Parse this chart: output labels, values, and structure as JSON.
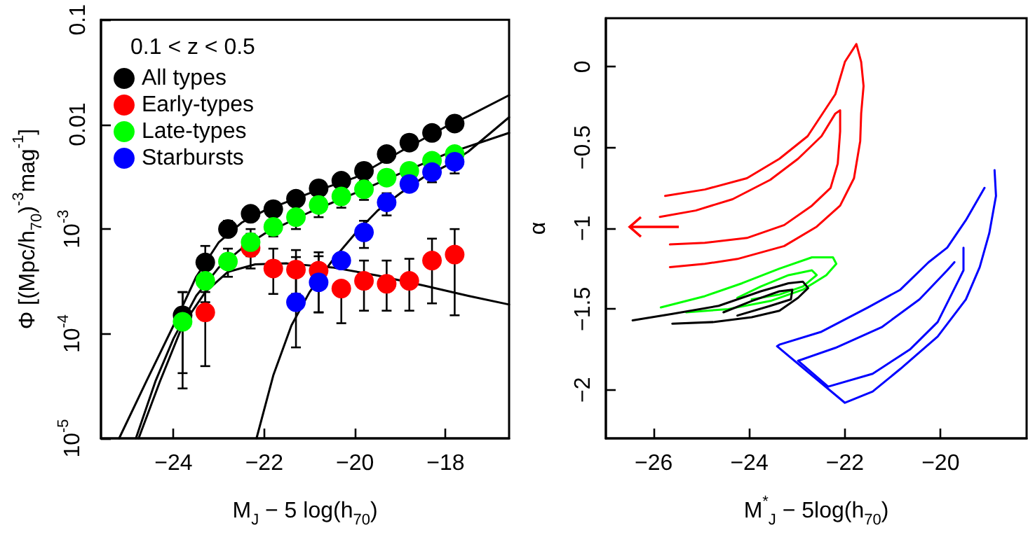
{
  "chart_data": [
    {
      "type": "scatter",
      "xlabel": "M$_{J}$ − 5 log(h$_{70}$)",
      "ylabel": "Φ [(Mpc/h$_{70}$)$^{-3}$mag$^{-1}$]",
      "legend_title": "0.1 < z < 0.5",
      "legend": "top left",
      "marker": "circle",
      "grid": false,
      "log": "y",
      "xlim": [
        -25.6,
        -16.6
      ],
      "xticks": [
        -24,
        -22,
        -20,
        -18
      ],
      "ylim": [
        1e-05,
        0.1
      ],
      "yticks": [
        {
          "value": 1e-05,
          "label": "10$^{-5}$"
        },
        {
          "value": 0.0001,
          "label": "10$^{-4}$"
        },
        {
          "value": 0.001,
          "label": "10$^{-3}$"
        },
        0.01,
        0.1
      ],
      "x": [
        -23.8,
        -23.3,
        -22.8,
        -22.3,
        -21.8,
        -21.3,
        -20.8,
        -20.3,
        -19.8,
        -19.3,
        -18.8,
        -18.3,
        -17.8
      ],
      "series": [
        {
          "type": "line",
          "marker": "none",
          "color": "#000000",
          "x": [
            -25.2,
            -24.6,
            -24,
            -23.5,
            -23,
            -22.5,
            -22,
            -21,
            -20,
            -19,
            -18,
            -17.5,
            -16.6
          ],
          "values": [
            1e-05,
            3.5e-05,
            0.00012,
            0.00035,
            0.00075,
            0.00115,
            0.0015,
            0.0022,
            0.0031,
            0.0055,
            0.0095,
            0.012,
            0.019
          ]
        },
        {
          "type": "line",
          "marker": "none",
          "color": "#000000",
          "x": [
            -24.83,
            -24.4,
            -24,
            -23.5,
            -23,
            -22.5,
            -22,
            -21,
            -20,
            -19,
            -18,
            -16.6
          ],
          "values": [
            1e-05,
            3.5e-05,
            9e-05,
            0.00023,
            0.00043,
            0.00065,
            0.0009,
            0.00145,
            0.0022,
            0.0034,
            0.0052,
            0.0083
          ]
        },
        {
          "type": "line",
          "marker": "none",
          "color": "#000000",
          "x": [
            -24.77,
            -24.3,
            -23.8,
            -23.3,
            -22.8,
            -22.2,
            -21.5,
            -20.5,
            -19.5,
            -18.5,
            -17.5,
            -16.6
          ],
          "values": [
            1e-05,
            3.5e-05,
            0.00012,
            0.00025,
            0.00039,
            0.00046,
            0.00047,
            0.00043,
            0.00036,
            0.00029,
            0.00023,
            0.00019
          ]
        },
        {
          "type": "line",
          "marker": "none",
          "color": "#000000",
          "x": [
            -22.17,
            -21.8,
            -21.4,
            -21,
            -20.5,
            -20,
            -19.5,
            -19,
            -18.5,
            -18,
            -17.5,
            -16.6
          ],
          "values": [
            1e-05,
            4e-05,
            0.00012,
            0.00025,
            0.0005,
            0.0009,
            0.0015,
            0.0022,
            0.0031,
            0.004,
            0.0055,
            0.0117
          ]
        },
        {
          "name": "All types",
          "color": "#000000",
          "values": [
            0.00015,
            0.00048,
            0.001,
            0.0014,
            0.00155,
            0.00195,
            0.00245,
            0.0029,
            0.0036,
            0.0052,
            0.0067,
            0.0083,
            0.0102
          ],
          "errors": [
            [
              3e-05,
              0.00025
            ],
            [
              0.00036,
              0.00069
            ],
            [
              0.00085,
              0.0012
            ],
            null,
            null,
            null,
            null,
            null,
            null,
            null,
            null,
            null,
            null
          ]
        },
        {
          "name": "Early-types",
          "color": "#ff0000",
          "values": [
            null,
            0.00016,
            null,
            0.00066,
            0.00042,
            0.00041,
            0.0004,
            0.00027,
            0.00032,
            0.0003,
            0.00032,
            0.0005,
            0.00057
          ],
          "errors": [
            null,
            [
              4.9e-05,
              0.00025
            ],
            null,
            [
              0.00042,
              0.0009
            ],
            [
              0.00024,
              0.00065
            ],
            [
              0.00024,
              0.00063
            ],
            [
              0.00016,
              0.0006
            ],
            [
              0.000126,
              0.00027
            ],
            [
              0.000166,
              0.0005
            ],
            [
              0.000166,
              0.0005
            ],
            [
              0.000166,
              0.00052
            ],
            [
              0.000195,
              0.00081
            ],
            [
              0.00015,
              0.001
            ]
          ]
        },
        {
          "name": "Late-types",
          "color": "#00ff00",
          "values": [
            0.00013,
            0.00032,
            0.00049,
            0.00075,
            0.00105,
            0.0013,
            0.0017,
            0.00205,
            0.0024,
            0.0031,
            0.0036,
            0.0045,
            0.0052
          ],
          "errors": [
            [
              4.2e-05,
              0.00025
            ],
            [
              0.0002,
              0.00032
            ],
            [
              0.00035,
              0.00065
            ],
            [
              0.00055,
              0.001
            ],
            [
              0.00085,
              0.00133
            ],
            [
              0.001,
              0.0017
            ],
            [
              0.0013,
              0.0022
            ],
            [
              0.0016,
              0.0026
            ],
            [
              0.0019,
              0.0029
            ],
            null,
            null,
            null,
            null
          ]
        },
        {
          "name": "Starbursts",
          "color": "#0000ff",
          "values": [
            null,
            null,
            null,
            null,
            null,
            0.0002,
            0.00031,
            0.0005,
            0.00093,
            0.0018,
            0.0027,
            0.0035,
            0.0044
          ],
          "errors": [
            null,
            null,
            null,
            null,
            null,
            [
              7.4e-05,
              0.00054
            ],
            [
              0.00016,
              0.00055
            ],
            null,
            [
              0.00066,
              0.0012
            ],
            [
              0.00135,
              0.0022
            ],
            null,
            [
              0.0028,
              0.0042
            ],
            [
              0.0034,
              0.0053
            ]
          ]
        }
      ]
    },
    {
      "type": "line",
      "xlabel": "M$^{*}$$_{J}$ − 5log(h$_{70}$)",
      "ylabel": "α",
      "marker": "none",
      "grid": false,
      "xlim": [
        -27,
        -18.2
      ],
      "xticks": [
        -26,
        -24,
        -22,
        -20
      ],
      "ylim": [
        -2.3,
        0.3
      ],
      "yticks": [
        -2,
        -1.5,
        -1,
        -0.5,
        0
      ],
      "series": [
        {
          "color": "#ff0000",
          "x": [
            -25.76,
            -24.93,
            -24.05,
            -23.37,
            -22.78,
            -22.2,
            -22.0,
            -21.76,
            -21.66,
            -21.61,
            -21.66,
            -21.68,
            -21.81,
            -22.1,
            -22.59,
            -23.27,
            -24.25,
            -24.93,
            -25.66
          ],
          "values": [
            -0.8,
            -0.76,
            -0.69,
            -0.57,
            -0.43,
            -0.17,
            0.03,
            0.14,
            0.03,
            -0.12,
            -0.29,
            -0.46,
            -0.69,
            -0.86,
            -0.99,
            -1.11,
            -1.19,
            -1.22,
            -1.24
          ]
        },
        {
          "color": "#ff0000",
          "x": [
            -25.87,
            -25.12,
            -24.35,
            -23.56,
            -22.98,
            -22.49,
            -22.2,
            -22.1,
            -22.1,
            -22.15,
            -22.3,
            -22.69,
            -23.27,
            -24.05,
            -24.93,
            -25.66
          ],
          "values": [
            -0.93,
            -0.89,
            -0.82,
            -0.7,
            -0.57,
            -0.43,
            -0.29,
            -0.27,
            -0.4,
            -0.6,
            -0.75,
            -0.86,
            -0.98,
            -1.06,
            -1.09,
            -1.1
          ]
        },
        {
          "color": "#00ff00",
          "x": [
            -25.85,
            -24.93,
            -24.15,
            -23.37,
            -22.69,
            -22.25,
            -22.18,
            -22.39,
            -22.88,
            -23.56,
            -24.44,
            -25.32
          ],
          "values": [
            -1.49,
            -1.42,
            -1.34,
            -1.25,
            -1.18,
            -1.18,
            -1.22,
            -1.29,
            -1.38,
            -1.45,
            -1.5,
            -1.52
          ]
        },
        {
          "color": "#00ff00",
          "x": [
            -24.25,
            -23.76,
            -23.18,
            -22.69,
            -22.59,
            -22.88,
            -23.37,
            -23.95
          ],
          "values": [
            -1.43,
            -1.36,
            -1.29,
            -1.26,
            -1.29,
            -1.36,
            -1.41,
            -1.44
          ]
        },
        {
          "color": "#000000",
          "x": [
            -26.44,
            -25.61,
            -24.64,
            -23.76,
            -23.18,
            -22.88,
            -22.77,
            -22.98,
            -23.37,
            -23.95,
            -24.73,
            -25.61
          ],
          "values": [
            -1.57,
            -1.53,
            -1.48,
            -1.39,
            -1.34,
            -1.33,
            -1.37,
            -1.43,
            -1.51,
            -1.55,
            -1.58,
            -1.59
          ]
        },
        {
          "color": "#000000",
          "x": [
            -24.54,
            -23.95,
            -23.37,
            -23.1,
            -23.13,
            -23.56,
            -24.25
          ],
          "values": [
            -1.52,
            -1.45,
            -1.39,
            -1.38,
            -1.44,
            -1.48,
            -1.54
          ]
        },
        {
          "color": "#0000ff",
          "x": [
            -18.87,
            -18.84,
            -18.98,
            -19.18,
            -19.47,
            -20.06,
            -20.84,
            -21.42,
            -22.0,
            -23.42,
            -23.37,
            -22.49,
            -21.52,
            -20.84,
            -20.25,
            -19.86,
            -19.47,
            -19.08
          ],
          "values": [
            -0.64,
            -0.8,
            -1.03,
            -1.24,
            -1.44,
            -1.67,
            -1.87,
            -2.01,
            -2.08,
            -1.73,
            -1.72,
            -1.64,
            -1.49,
            -1.38,
            -1.21,
            -1.12,
            -0.95,
            -0.75
          ]
        },
        {
          "color": "#0000ff",
          "x": [
            -19.52,
            -19.52,
            -19.62,
            -20.06,
            -20.64,
            -21.42,
            -22.35,
            -22.98,
            -22.2,
            -21.22,
            -20.44,
            -19.86,
            -19.71
          ],
          "values": [
            -1.12,
            -1.26,
            -1.32,
            -1.58,
            -1.75,
            -1.9,
            -1.98,
            -1.82,
            -1.74,
            -1.61,
            -1.44,
            -1.26,
            -1.21
          ]
        }
      ]
    }
  ]
}
